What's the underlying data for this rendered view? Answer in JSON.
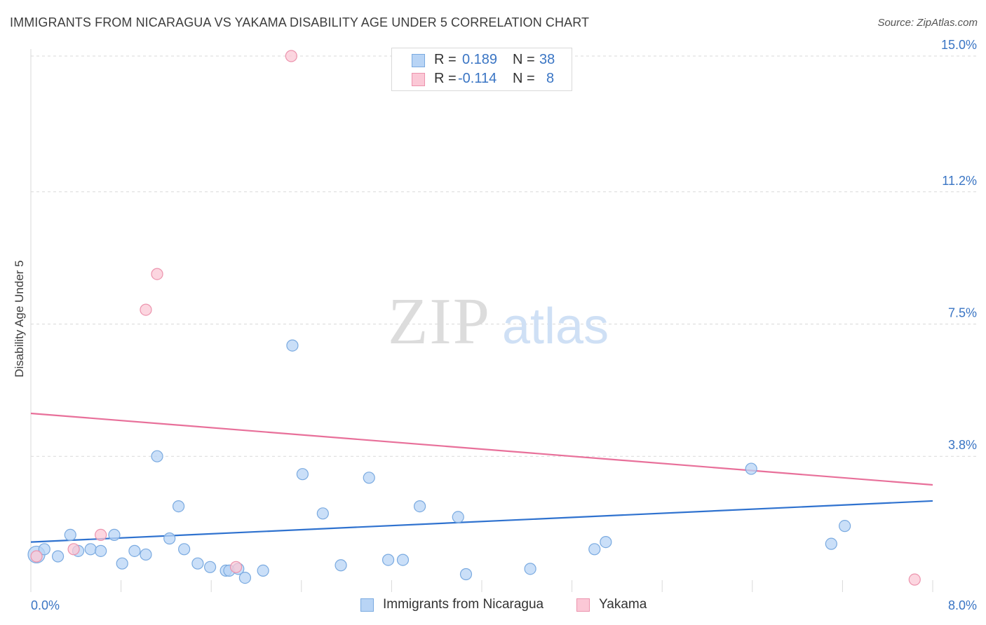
{
  "header": {
    "title": "IMMIGRANTS FROM NICARAGUA VS YAKAMA DISABILITY AGE UNDER 5 CORRELATION CHART",
    "source": "Source: ZipAtlas.com"
  },
  "watermark": {
    "zip": "ZIP",
    "atlas": "atlas"
  },
  "legend": {
    "rows": [
      {
        "r_label": "R =",
        "r_value": "0.189",
        "n_label": "N =",
        "n_value": "38"
      },
      {
        "r_label": "R =",
        "r_value": "-0.114",
        "n_label": "N =",
        "n_value": "8"
      }
    ]
  },
  "colors": {
    "series1_fill": "#b8d4f5",
    "series1_stroke": "#7aaae0",
    "series1_line": "#2f72cf",
    "series2_fill": "#fbc8d6",
    "series2_stroke": "#ec93ad",
    "series2_line": "#e8709a",
    "tick_text": "#3a75c4",
    "grid": "#d9d9d9"
  },
  "chart_data": {
    "type": "scatter",
    "title": "IMMIGRANTS FROM NICARAGUA VS YAKAMA DISABILITY AGE UNDER 5 CORRELATION CHART",
    "xlabel": "",
    "ylabel": "Disability Age Under 5",
    "xlim": [
      0,
      8.0
    ],
    "ylim": [
      0,
      15.0
    ],
    "x_tick_labels": [
      "0.0%",
      "8.0%"
    ],
    "y_ticks": [
      3.8,
      7.5,
      11.2,
      15.0
    ],
    "y_tick_labels": [
      "3.8%",
      "7.5%",
      "11.2%",
      "15.0%"
    ],
    "series": [
      {
        "name": "Immigrants from Nicaragua",
        "x": [
          0.05,
          0.12,
          0.24,
          0.35,
          0.42,
          0.53,
          0.62,
          0.74,
          0.81,
          0.92,
          1.02,
          1.12,
          1.23,
          1.31,
          1.36,
          1.48,
          1.59,
          1.73,
          1.76,
          1.84,
          1.9,
          2.06,
          2.32,
          2.41,
          2.59,
          2.75,
          3.0,
          3.17,
          3.3,
          3.45,
          3.79,
          3.86,
          4.43,
          5.0,
          5.1,
          6.39,
          7.1,
          7.22
        ],
        "y": [
          1.05,
          1.2,
          1.0,
          1.6,
          1.15,
          1.2,
          1.15,
          1.6,
          0.8,
          1.15,
          1.05,
          3.8,
          1.5,
          2.4,
          1.2,
          0.8,
          0.7,
          0.6,
          0.6,
          0.65,
          0.4,
          0.6,
          6.9,
          3.3,
          2.2,
          0.75,
          3.2,
          0.9,
          0.9,
          2.4,
          2.1,
          0.5,
          0.65,
          1.2,
          1.4,
          3.45,
          1.35,
          1.85
        ]
      },
      {
        "name": "Yakama",
        "x": [
          0.05,
          0.38,
          0.62,
          1.02,
          1.12,
          1.82,
          2.31,
          7.84
        ],
        "y": [
          1.0,
          1.2,
          1.6,
          7.9,
          8.9,
          0.7,
          15.0,
          0.35
        ]
      }
    ],
    "trend_lines": [
      {
        "series": "Immigrants from Nicaragua",
        "x": [
          0,
          8.0
        ],
        "y": [
          1.4,
          2.55
        ]
      },
      {
        "series": "Yakama",
        "x": [
          0,
          8.0
        ],
        "y": [
          5.0,
          3.0
        ]
      }
    ]
  }
}
